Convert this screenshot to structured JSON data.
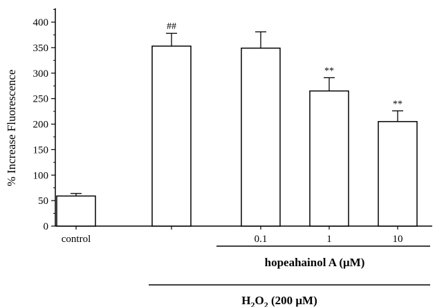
{
  "chart_data": {
    "type": "bar",
    "categories": [
      "control",
      "",
      "0.1",
      "1",
      "10"
    ],
    "values": [
      59,
      353,
      349,
      265,
      205
    ],
    "errors": [
      5,
      25,
      32,
      26,
      21
    ],
    "annotations": [
      "",
      "##",
      "",
      "**",
      "**"
    ],
    "ylabel": "% Increase Fluorescence",
    "xlabel": "",
    "ylim": [
      0,
      400
    ],
    "yticks": [
      0,
      50,
      100,
      150,
      200,
      250,
      300,
      350,
      400
    ],
    "grid": false,
    "bar_fill": "#ffffff",
    "bar_stroke": "#000000",
    "groups": [
      {
        "label": "hopeahainol A (μM)",
        "from_category": 2,
        "to_category": 4
      },
      {
        "label_main": "H",
        "sub1": "2",
        "label_mid": "O",
        "sub2": "2",
        "label_rest": " (200 μM)",
        "from_category": 1,
        "to_category": 4
      }
    ]
  }
}
